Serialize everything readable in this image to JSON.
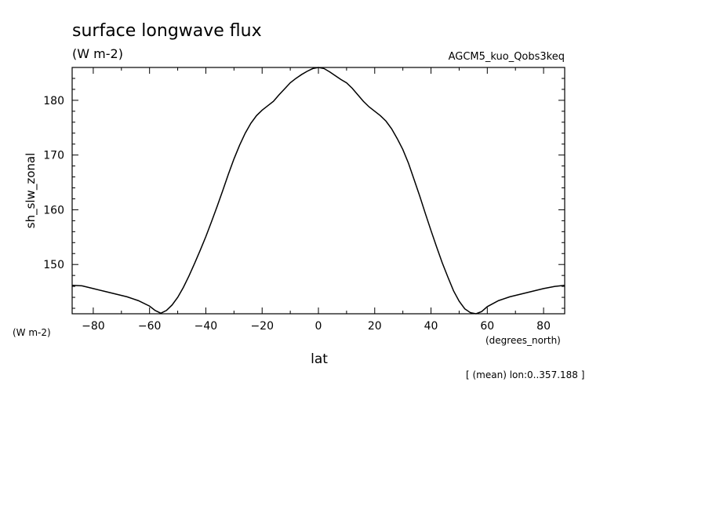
{
  "chart_data": {
    "type": "line",
    "title": "surface longwave flux",
    "subtitle": "(W m-2)",
    "run_label": "AGCM5_kuo_Qobs3keq",
    "ylabel": "sh_slw_zonal",
    "y_units": "(W m-2)",
    "xlabel": "lat",
    "x_units": "(degrees_north)",
    "footnote": "[ (mean) lon:0..357.188 ]",
    "xlim": [
      -87.5,
      87.5
    ],
    "ylim": [
      141,
      186
    ],
    "x_ticks": [
      -80,
      -60,
      -40,
      -20,
      0,
      20,
      40,
      60,
      80
    ],
    "x_tick_labels": [
      "-80",
      "-60",
      "-40",
      "-20",
      "0",
      "20",
      "40",
      "60",
      "80"
    ],
    "y_ticks": [
      150,
      160,
      170,
      180
    ],
    "y_tick_labels": [
      "150",
      "160",
      "170",
      "180"
    ],
    "grid": false,
    "line_color": "#000000",
    "series": [
      {
        "x": [
          -87.5,
          -84,
          -80,
          -76,
          -72,
          -68,
          -64,
          -60,
          -58,
          -56,
          -54,
          -52,
          -50,
          -48,
          -46,
          -44,
          -42,
          -40,
          -38,
          -36,
          -34,
          -32,
          -30,
          -28,
          -26,
          -24,
          -22,
          -20,
          -18,
          -16,
          -14,
          -12,
          -10,
          -8,
          -6,
          -4,
          -2,
          0,
          2,
          4,
          6,
          8,
          10,
          12,
          14,
          16,
          18,
          20,
          22,
          24,
          26,
          28,
          30,
          32,
          34,
          36,
          38,
          40,
          42,
          44,
          46,
          48,
          50,
          52,
          54,
          56,
          58,
          60,
          64,
          68,
          72,
          76,
          80,
          84,
          87.5
        ],
        "y": [
          146.2,
          146.1,
          145.6,
          145.1,
          144.6,
          144.1,
          143.4,
          142.4,
          141.6,
          141.1,
          141.6,
          142.6,
          144.0,
          145.8,
          147.9,
          150.2,
          152.6,
          155.1,
          157.8,
          160.6,
          163.5,
          166.5,
          169.3,
          171.8,
          174.0,
          175.8,
          177.2,
          178.2,
          179.0,
          179.8,
          181.0,
          182.1,
          183.2,
          184.0,
          184.7,
          185.3,
          185.8,
          186.0,
          185.8,
          185.2,
          184.5,
          183.8,
          183.2,
          182.2,
          181.0,
          179.8,
          178.8,
          178.0,
          177.2,
          176.2,
          174.8,
          173.0,
          171.0,
          168.5,
          165.5,
          162.5,
          159.3,
          156.2,
          153.2,
          150.3,
          147.7,
          145.2,
          143.3,
          141.9,
          141.2,
          141.0,
          141.4,
          142.3,
          143.4,
          144.1,
          144.6,
          145.1,
          145.6,
          146.0,
          146.2
        ]
      }
    ]
  }
}
